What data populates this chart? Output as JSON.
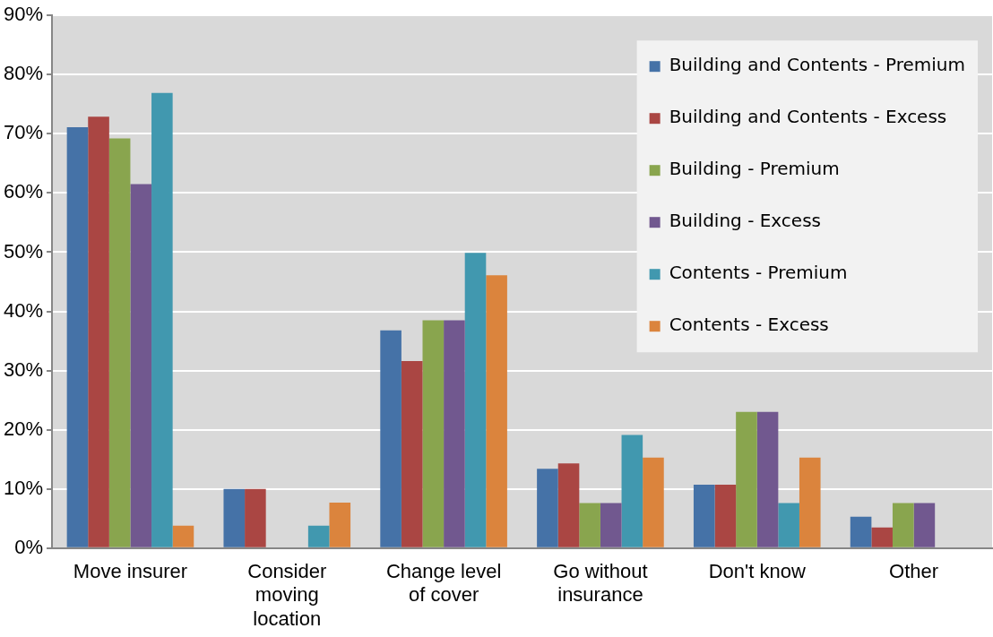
{
  "chart_data": {
    "type": "bar",
    "categories": [
      "Move insurer",
      "Consider moving location",
      "Change level of cover",
      "Go without insurance",
      "Don't know",
      "Other"
    ],
    "series": [
      {
        "name": "Building and Contents - Premium",
        "color": "#4572a7",
        "values": [
          71.1,
          10,
          36.8,
          13.4,
          10.7,
          5.3
        ]
      },
      {
        "name": "Building and Contents - Excess",
        "color": "#aa4643",
        "values": [
          72.9,
          10,
          31.6,
          14.3,
          10.7,
          3.5
        ]
      },
      {
        "name": "Building - Premium",
        "color": "#89a54e",
        "values": [
          69.2,
          0,
          38.5,
          7.6,
          23.0,
          7.6
        ]
      },
      {
        "name": "Building - Excess",
        "color": "#71588f",
        "values": [
          61.5,
          0,
          38.5,
          7.6,
          23.0,
          7.6
        ]
      },
      {
        "name": "Contents - Premium",
        "color": "#4198af",
        "values": [
          76.9,
          3.8,
          49.9,
          19.1,
          7.6,
          0
        ]
      },
      {
        "name": "Contents - Excess",
        "color": "#db843d",
        "values": [
          3.8,
          7.7,
          46.1,
          15.3,
          15.3,
          0
        ]
      }
    ],
    "ylim": [
      0,
      90
    ],
    "yticks": [
      {
        "value": 0,
        "label": "0%"
      },
      {
        "value": 10,
        "label": "10%"
      },
      {
        "value": 20,
        "label": "20%"
      },
      {
        "value": 30,
        "label": "30%"
      },
      {
        "value": 40,
        "label": "40%"
      },
      {
        "value": 50,
        "label": "50%"
      },
      {
        "value": 60,
        "label": "60%"
      },
      {
        "value": 70,
        "label": "70%"
      },
      {
        "value": 80,
        "label": "80%"
      },
      {
        "value": 90,
        "label": "90%"
      }
    ],
    "grid": "y",
    "legend": "top right"
  }
}
